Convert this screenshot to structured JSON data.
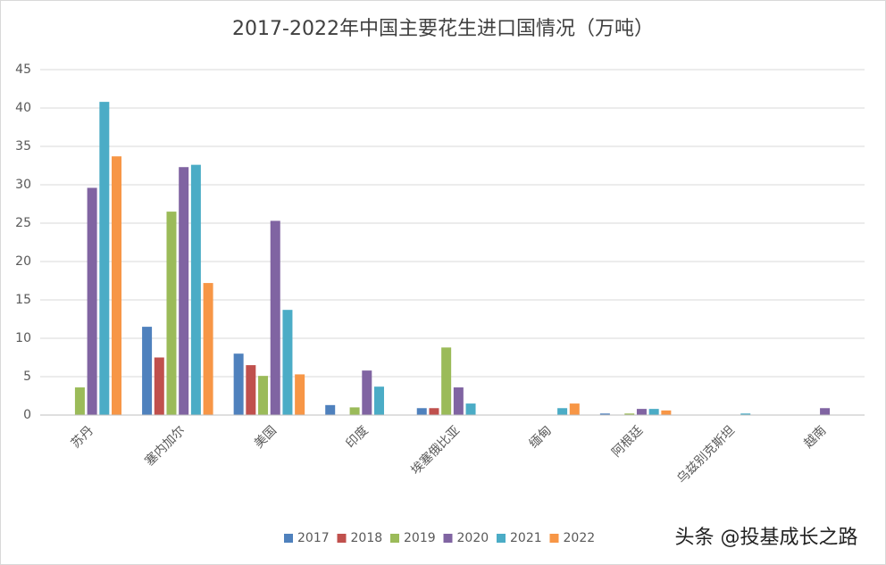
{
  "chart_data": {
    "type": "bar",
    "title": "2017-2022年中国主要花生进口国情况（万吨）",
    "categories": [
      "苏丹",
      "塞内加尔",
      "美国",
      "印度",
      "埃塞俄比亚",
      "缅甸",
      "阿根廷",
      "乌兹别克斯坦",
      "越南"
    ],
    "series": [
      {
        "name": "2017",
        "color": "#4f81bd",
        "values": [
          null,
          11.5,
          8.0,
          1.3,
          0.9,
          null,
          0.2,
          null,
          null
        ]
      },
      {
        "name": "2018",
        "color": "#c0504d",
        "values": [
          null,
          7.5,
          6.5,
          null,
          0.9,
          null,
          null,
          null,
          null
        ]
      },
      {
        "name": "2019",
        "color": "#9bbb59",
        "values": [
          3.6,
          26.5,
          5.1,
          1.0,
          8.8,
          null,
          0.2,
          null,
          null
        ]
      },
      {
        "name": "2020",
        "color": "#8064a2",
        "values": [
          29.6,
          32.3,
          25.3,
          5.8,
          3.6,
          null,
          0.8,
          null,
          0.9
        ]
      },
      {
        "name": "2021",
        "color": "#4bacc6",
        "values": [
          40.8,
          32.6,
          13.7,
          3.7,
          1.5,
          0.9,
          0.8,
          0.2,
          null
        ]
      },
      {
        "name": "2022",
        "color": "#f79646",
        "values": [
          33.7,
          17.2,
          5.3,
          null,
          null,
          1.5,
          0.6,
          null,
          null
        ]
      }
    ],
    "ylim": [
      0,
      45
    ],
    "yticks": [
      0,
      5,
      10,
      15,
      20,
      25,
      30,
      35,
      40,
      45
    ],
    "grid": true,
    "legend": "bottom",
    "watermark": "头条 @投基成长之路"
  }
}
